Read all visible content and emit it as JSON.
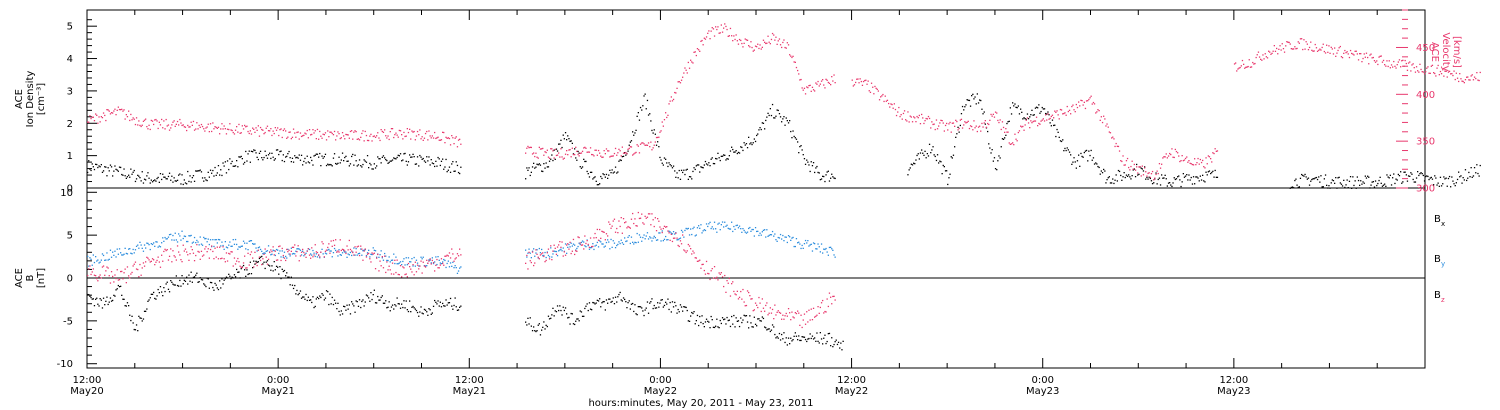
{
  "chart_data": [
    {
      "type": "scatter",
      "panel": "top",
      "ylabel_left_lines": [
        "ACE",
        "Ion Density",
        "[cm⁻³]"
      ],
      "ylabel_right_lines": [
        "ACE",
        "Velocity",
        "[km/s]"
      ],
      "ylim_left": [
        0,
        5.5
      ],
      "ylim_right": [
        300,
        490
      ],
      "yticks_left": [
        "0",
        "1",
        "2",
        "3",
        "4",
        "5"
      ],
      "yticks_right": [
        "300",
        "350",
        "400",
        "450"
      ],
      "right_axis_color": "#e8386d",
      "series": [
        {
          "axis": "left",
          "color": "#000000",
          "segments": [
            {
              "t": [
                0,
                2,
                4,
                6,
                8,
                10,
                12,
                14,
                16,
                18,
                20,
                22,
                23.5
              ],
              "v": [
                0.7,
                0.5,
                0.3,
                0.3,
                0.5,
                1.0,
                1.0,
                0.9,
                0.9,
                0.8,
                0.9,
                0.8,
                0.6
              ]
            },
            {
              "t": [
                27.5,
                29,
                30,
                31,
                32,
                33,
                34,
                35,
                36,
                37,
                38,
                39,
                40,
                41,
                42,
                43,
                44,
                45,
                46,
                47
              ],
              "v": [
                0.5,
                0.8,
                1.6,
                0.8,
                0.3,
                0.4,
                1.4,
                2.8,
                0.9,
                0.4,
                0.5,
                0.8,
                1.0,
                1.3,
                1.6,
                2.4,
                2.0,
                0.9,
                0.4,
                0.4
              ]
            },
            {
              "t": [
                51.5,
                53,
                54,
                55,
                56,
                57,
                58,
                59,
                60,
                61,
                62,
                63,
                64,
                65,
                66,
                67,
                68,
                69,
                70,
                71
              ],
              "v": [
                0.6,
                1.3,
                0.3,
                2.6,
                2.8,
                0.6,
                2.5,
                2.3,
                2.5,
                1.5,
                0.8,
                1.1,
                0.3,
                0.4,
                0.6,
                0.3,
                0.2,
                0.3,
                0.4,
                0.4
              ]
            },
            {
              "t": [
                75.5,
                77,
                78,
                79,
                80,
                81,
                82,
                83,
                84,
                85,
                86,
                87.5
              ],
              "v": [
                0.2,
                0.3,
                0.2,
                0.2,
                0.2,
                0.2,
                0.3,
                0.4,
                0.3,
                0.2,
                0.3,
                0.6
              ]
            }
          ]
        },
        {
          "axis": "right",
          "color": "#e8386d",
          "segments": [
            {
              "t": [
                0,
                1,
                2,
                3,
                4,
                6,
                8,
                10,
                12,
                14,
                16,
                18,
                20,
                22,
                23.5
              ],
              "v": [
                372,
                378,
                382,
                374,
                368,
                368,
                365,
                362,
                360,
                358,
                356,
                357,
                359,
                356,
                348
              ]
            },
            {
              "t": [
                27.5,
                28.5,
                29.5,
                30.5,
                31.5,
                32.5,
                33.5,
                34.5,
                35.5,
                36.5,
                37,
                38,
                39,
                40,
                41,
                42,
                43,
                44,
                45,
                46,
                47
              ],
              "v": [
                340,
                338,
                336,
                340,
                342,
                337,
                340,
                342,
                346,
                385,
                410,
                440,
                465,
                470,
                458,
                450,
                460,
                450,
                405,
                410,
                418
              ]
            },
            {
              "t": [
                48,
                49,
                50,
                51,
                52,
                54,
                55,
                56,
                57,
                58,
                59,
                60,
                62,
                63,
                64,
                65,
                66,
                67,
                68,
                69,
                70,
                71
              ],
              "v": [
                415,
                410,
                395,
                380,
                375,
                365,
                370,
                365,
                378,
                350,
                370,
                375,
                385,
                395,
                365,
                330,
                320,
                315,
                340,
                330,
                325,
                340
              ]
            },
            {
              "t": [
                72,
                73,
                74,
                75,
                76,
                77,
                78,
                79,
                80,
                81,
                82,
                83,
                84,
                85,
                86,
                87,
                87.5
              ],
              "v": [
                430,
                435,
                445,
                450,
                455,
                452,
                448,
                445,
                440,
                437,
                433,
                430,
                428,
                425,
                420,
                418,
                420
              ]
            }
          ]
        }
      ]
    },
    {
      "type": "scatter",
      "panel": "bottom",
      "ylabel_left_lines": [
        "ACE",
        "B",
        "[nT]"
      ],
      "ylim": [
        -10.5,
        10.5
      ],
      "yticks": [
        "-10",
        "-5",
        "0",
        "5",
        "10"
      ],
      "zero_line": true,
      "legend_placement": "right",
      "series": [
        {
          "name": "B",
          "sub": "x",
          "color": "#000000",
          "segments": [
            {
              "t": [
                0,
                1,
                2,
                3,
                4,
                5,
                6,
                7,
                8,
                9,
                10,
                11,
                12,
                13,
                14,
                15,
                16,
                17,
                18,
                19,
                20,
                21,
                22,
                23.5
              ],
              "v": [
                -2,
                -3,
                -1,
                -6,
                -2,
                -1,
                0,
                0,
                -1,
                0,
                1,
                2,
                1,
                -1,
                -3,
                -2,
                -4,
                -3,
                -2,
                -3,
                -3,
                -4,
                -3,
                -3
              ]
            },
            {
              "t": [
                27.5,
                28.5,
                29.5,
                30.5,
                31.5,
                32.5,
                33.5,
                34.5,
                35.5,
                36.5,
                37.5,
                38.5,
                39.5,
                40.5,
                41.5,
                42.5,
                43.5,
                44.5,
                45.5,
                46.5,
                47.5
              ],
              "v": [
                -5,
                -6,
                -3,
                -5,
                -3,
                -3,
                -2,
                -4,
                -3,
                -3,
                -4,
                -5,
                -5,
                -5,
                -5,
                -5,
                -7,
                -7,
                -7,
                -7,
                -8
              ]
            }
          ]
        },
        {
          "name": "B",
          "sub": "y",
          "color": "#2a8cdd",
          "segments": [
            {
              "t": [
                0,
                2,
                4,
                6,
                8,
                10,
                12,
                14,
                16,
                18,
                20,
                22,
                23.5
              ],
              "v": [
                2,
                3,
                4,
                5,
                4,
                4,
                3,
                3,
                3,
                3,
                2,
                2,
                1
              ]
            },
            {
              "t": [
                27.5,
                29,
                31,
                33,
                35,
                37,
                39,
                41,
                43,
                45,
                47
              ],
              "v": [
                3,
                3,
                4,
                4,
                5,
                5,
                6,
                6,
                5,
                4,
                3
              ]
            }
          ]
        },
        {
          "name": "B",
          "sub": "z",
          "color": "#e8386d",
          "segments": [
            {
              "t": [
                0,
                2,
                4,
                6,
                8,
                10,
                12,
                14,
                16,
                18,
                20,
                22,
                23.5
              ],
              "v": [
                1,
                0,
                2,
                3,
                3,
                2,
                3,
                3,
                4,
                2,
                1,
                2,
                3
              ]
            },
            {
              "t": [
                27.5,
                29,
                31,
                33,
                35,
                37,
                39,
                41,
                43,
                45,
                47
              ],
              "v": [
                2,
                3,
                4,
                6,
                7,
                5,
                1,
                -2,
                -4,
                -5,
                -2
              ]
            }
          ]
        }
      ]
    }
  ],
  "x_axis": {
    "tick_labels": [
      {
        "t": 0,
        "hm": "12:00",
        "day": "May20"
      },
      {
        "t": 12,
        "hm": "0:00",
        "day": "May21"
      },
      {
        "t": 24,
        "hm": "12:00",
        "day": "May21"
      },
      {
        "t": 36,
        "hm": "0:00",
        "day": "May22"
      },
      {
        "t": 48,
        "hm": "12:00",
        "day": "May22"
      },
      {
        "t": 60,
        "hm": "0:00",
        "day": "May23"
      },
      {
        "t": 72,
        "hm": "12:00",
        "day": "May23"
      }
    ],
    "xlabel": "hours:minutes, May 20, 2011 - May 23, 2011"
  }
}
